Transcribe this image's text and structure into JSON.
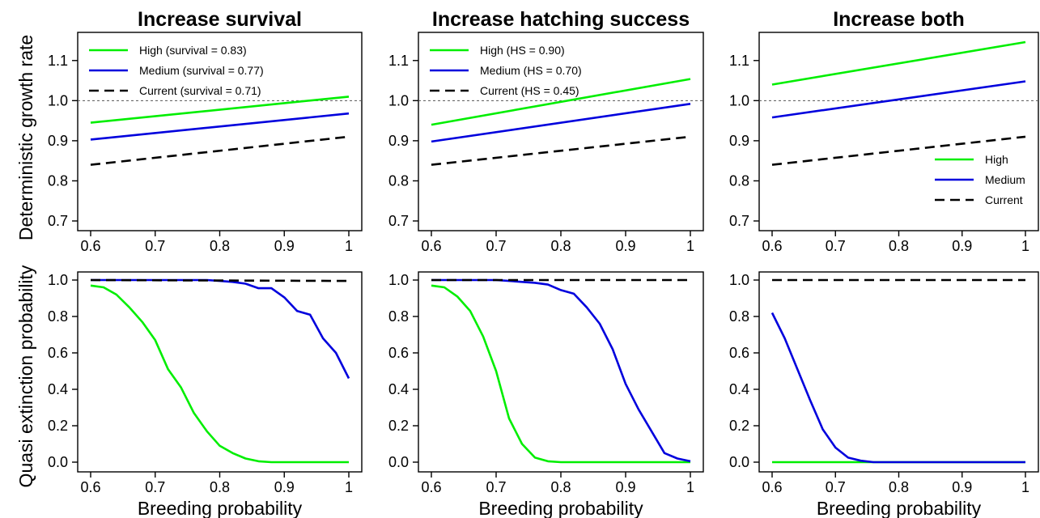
{
  "figure": {
    "ylabel_top": "Deterministic growth rate",
    "ylabel_bottom": "Quasi extinction probability",
    "xlabel": "Breeding probability"
  },
  "chart_data": [
    {
      "type": "line",
      "title": "Increase survival",
      "ylabel": "Deterministic growth rate",
      "xlabel": "",
      "xlim": [
        0.6,
        1.0
      ],
      "ylim": [
        0.7,
        1.15
      ],
      "x_ticks": [
        0.6,
        0.7,
        0.8,
        0.9,
        1
      ],
      "x_tick_labels": [
        "0.6",
        "0.7",
        "0.8",
        "0.9",
        "1"
      ],
      "y_ticks": [
        0.7,
        0.8,
        0.9,
        1.0,
        1.1
      ],
      "y_tick_labels": [
        "0.7",
        "0.8",
        "0.9",
        "1.0",
        "1.1"
      ],
      "reference_line_y": 1.0,
      "legend_position": "top-left",
      "series": [
        {
          "name": "High (survival = 0.83)",
          "color": "#00ee00",
          "dash": "solid",
          "x": [
            0.6,
            1.0
          ],
          "values": [
            0.945,
            1.01
          ]
        },
        {
          "name": "Medium (survival = 0.77)",
          "color": "#0000dd",
          "dash": "solid",
          "x": [
            0.6,
            1.0
          ],
          "values": [
            0.903,
            0.968
          ]
        },
        {
          "name": "Current (survival = 0.71)",
          "color": "#000000",
          "dash": "dashed",
          "x": [
            0.6,
            1.0
          ],
          "values": [
            0.84,
            0.91
          ]
        }
      ]
    },
    {
      "type": "line",
      "title": "Increase hatching success",
      "ylabel": "",
      "xlabel": "",
      "xlim": [
        0.6,
        1.0
      ],
      "ylim": [
        0.7,
        1.15
      ],
      "x_ticks": [
        0.6,
        0.7,
        0.8,
        0.9,
        1
      ],
      "x_tick_labels": [
        "0.6",
        "0.7",
        "0.8",
        "0.9",
        "1"
      ],
      "y_ticks": [
        0.7,
        0.8,
        0.9,
        1.0,
        1.1
      ],
      "y_tick_labels": [
        "0.7",
        "0.8",
        "0.9",
        "1.0",
        "1.1"
      ],
      "reference_line_y": 1.0,
      "legend_position": "top-left",
      "series": [
        {
          "name": "High (HS = 0.90)",
          "color": "#00ee00",
          "dash": "solid",
          "x": [
            0.6,
            1.0
          ],
          "values": [
            0.94,
            1.054
          ]
        },
        {
          "name": "Medium (HS = 0.70)",
          "color": "#0000dd",
          "dash": "solid",
          "x": [
            0.6,
            1.0
          ],
          "values": [
            0.898,
            0.992
          ]
        },
        {
          "name": "Current (HS = 0.45)",
          "color": "#000000",
          "dash": "dashed",
          "x": [
            0.6,
            1.0
          ],
          "values": [
            0.84,
            0.91
          ]
        }
      ]
    },
    {
      "type": "line",
      "title": "Increase both",
      "ylabel": "",
      "xlabel": "",
      "xlim": [
        0.6,
        1.0
      ],
      "ylim": [
        0.7,
        1.15
      ],
      "x_ticks": [
        0.6,
        0.7,
        0.8,
        0.9,
        1
      ],
      "x_tick_labels": [
        "0.6",
        "0.7",
        "0.8",
        "0.9",
        "1"
      ],
      "y_ticks": [
        0.7,
        0.8,
        0.9,
        1.0,
        1.1
      ],
      "y_tick_labels": [
        "0.7",
        "0.8",
        "0.9",
        "1.0",
        "1.1"
      ],
      "reference_line_y": 1.0,
      "legend_position": "bottom-right",
      "series": [
        {
          "name": "High",
          "color": "#00ee00",
          "dash": "solid",
          "x": [
            0.6,
            1.0
          ],
          "values": [
            1.04,
            1.146
          ]
        },
        {
          "name": "Medium",
          "color": "#0000dd",
          "dash": "solid",
          "x": [
            0.6,
            1.0
          ],
          "values": [
            0.958,
            1.048
          ]
        },
        {
          "name": "Current",
          "color": "#000000",
          "dash": "dashed",
          "x": [
            0.6,
            1.0
          ],
          "values": [
            0.84,
            0.91
          ]
        }
      ]
    },
    {
      "type": "line",
      "title": "",
      "ylabel": "Quasi extinction probability",
      "xlabel": "Breeding probability",
      "xlim": [
        0.6,
        1.0
      ],
      "ylim": [
        0.0,
        1.0
      ],
      "x_ticks": [
        0.6,
        0.7,
        0.8,
        0.9,
        1
      ],
      "x_tick_labels": [
        "0.6",
        "0.7",
        "0.8",
        "0.9",
        "1"
      ],
      "y_ticks": [
        0.0,
        0.2,
        0.4,
        0.6,
        0.8,
        1.0
      ],
      "y_tick_labels": [
        "0.0",
        "0.2",
        "0.4",
        "0.6",
        "0.8",
        "1.0"
      ],
      "series": [
        {
          "color": "#00ee00",
          "dash": "solid",
          "x": [
            0.6,
            0.62,
            0.64,
            0.66,
            0.68,
            0.7,
            0.72,
            0.74,
            0.76,
            0.78,
            0.8,
            0.82,
            0.84,
            0.86,
            0.88,
            0.9,
            0.92,
            0.94,
            0.96,
            0.98,
            1.0
          ],
          "values": [
            0.97,
            0.96,
            0.92,
            0.85,
            0.77,
            0.67,
            0.51,
            0.41,
            0.27,
            0.17,
            0.09,
            0.05,
            0.02,
            0.005,
            0.0,
            0.0,
            0.0,
            0.0,
            0.0,
            0.0,
            0.0
          ]
        },
        {
          "color": "#0000dd",
          "dash": "solid",
          "x": [
            0.6,
            0.62,
            0.64,
            0.66,
            0.68,
            0.7,
            0.72,
            0.74,
            0.76,
            0.78,
            0.8,
            0.82,
            0.84,
            0.86,
            0.88,
            0.9,
            0.92,
            0.94,
            0.96,
            0.98,
            1.0
          ],
          "values": [
            1.0,
            1.0,
            1.0,
            1.0,
            1.0,
            1.0,
            1.0,
            1.0,
            1.0,
            1.0,
            0.995,
            0.99,
            0.98,
            0.955,
            0.955,
            0.905,
            0.83,
            0.81,
            0.68,
            0.6,
            0.46
          ]
        },
        {
          "color": "#000000",
          "dash": "dashed",
          "x": [
            0.6,
            1.0
          ],
          "values": [
            1.0,
            0.995
          ]
        }
      ]
    },
    {
      "type": "line",
      "title": "",
      "ylabel": "",
      "xlabel": "Breeding probability",
      "xlim": [
        0.6,
        1.0
      ],
      "ylim": [
        0.0,
        1.0
      ],
      "x_ticks": [
        0.6,
        0.7,
        0.8,
        0.9,
        1
      ],
      "x_tick_labels": [
        "0.6",
        "0.7",
        "0.8",
        "0.9",
        "1"
      ],
      "y_ticks": [
        0.0,
        0.2,
        0.4,
        0.6,
        0.8,
        1.0
      ],
      "y_tick_labels": [
        "0.0",
        "0.2",
        "0.4",
        "0.6",
        "0.8",
        "1.0"
      ],
      "series": [
        {
          "color": "#00ee00",
          "dash": "solid",
          "x": [
            0.6,
            0.62,
            0.64,
            0.66,
            0.68,
            0.7,
            0.72,
            0.74,
            0.76,
            0.78,
            0.8,
            0.82,
            0.84,
            0.86,
            0.88,
            0.9,
            0.92,
            0.94,
            0.96,
            0.98,
            1.0
          ],
          "values": [
            0.97,
            0.96,
            0.91,
            0.83,
            0.69,
            0.5,
            0.24,
            0.1,
            0.025,
            0.005,
            0.0,
            0.0,
            0.0,
            0.0,
            0.0,
            0.0,
            0.0,
            0.0,
            0.0,
            0.0,
            0.0
          ]
        },
        {
          "color": "#0000dd",
          "dash": "solid",
          "x": [
            0.6,
            0.62,
            0.64,
            0.66,
            0.68,
            0.7,
            0.72,
            0.74,
            0.76,
            0.78,
            0.8,
            0.82,
            0.84,
            0.86,
            0.88,
            0.9,
            0.92,
            0.94,
            0.96,
            0.98,
            1.0
          ],
          "values": [
            1.0,
            1.0,
            1.0,
            1.0,
            1.0,
            1.0,
            0.995,
            0.99,
            0.985,
            0.975,
            0.945,
            0.925,
            0.85,
            0.76,
            0.62,
            0.43,
            0.29,
            0.17,
            0.05,
            0.02,
            0.005
          ]
        },
        {
          "color": "#000000",
          "dash": "dashed",
          "x": [
            0.6,
            1.0
          ],
          "values": [
            1.0,
            1.0
          ]
        }
      ]
    },
    {
      "type": "line",
      "title": "",
      "ylabel": "",
      "xlabel": "Breeding probability",
      "xlim": [
        0.6,
        1.0
      ],
      "ylim": [
        0.0,
        1.0
      ],
      "x_ticks": [
        0.6,
        0.7,
        0.8,
        0.9,
        1
      ],
      "x_tick_labels": [
        "0.6",
        "0.7",
        "0.8",
        "0.9",
        "1"
      ],
      "y_ticks": [
        0.0,
        0.2,
        0.4,
        0.6,
        0.8,
        1.0
      ],
      "y_tick_labels": [
        "0.0",
        "0.2",
        "0.4",
        "0.6",
        "0.8",
        "1.0"
      ],
      "series": [
        {
          "color": "#00ee00",
          "dash": "solid",
          "x": [
            0.6,
            1.0
          ],
          "values": [
            0.0,
            0.0
          ]
        },
        {
          "color": "#0000dd",
          "dash": "solid",
          "x": [
            0.6,
            0.62,
            0.64,
            0.66,
            0.68,
            0.7,
            0.72,
            0.74,
            0.76,
            0.78,
            0.8,
            1.0
          ],
          "values": [
            0.82,
            0.68,
            0.51,
            0.34,
            0.18,
            0.08,
            0.025,
            0.008,
            0.0,
            0.0,
            0.0,
            0.0
          ]
        },
        {
          "color": "#000000",
          "dash": "dashed",
          "x": [
            0.6,
            1.0
          ],
          "values": [
            1.0,
            1.0
          ]
        }
      ]
    }
  ]
}
